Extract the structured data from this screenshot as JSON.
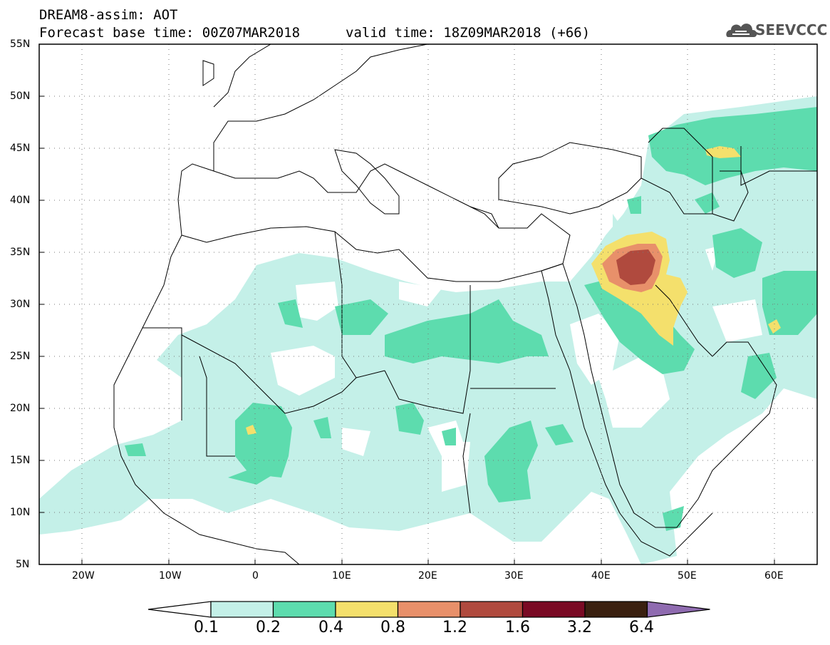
{
  "header": {
    "line1": "DREAM8-assim: AOT",
    "base_time": "Forecast base time: 00Z07MAR2018",
    "valid_time": "valid time: 18Z09MAR2018 (+66)"
  },
  "logo": {
    "text": "SEEVCCC",
    "icon": "cloud-icon"
  },
  "map": {
    "lat_labels": [
      "55N",
      "50N",
      "45N",
      "40N",
      "35N",
      "30N",
      "25N",
      "20N",
      "15N",
      "10N",
      "5N"
    ],
    "lon_labels": [
      "20W",
      "10W",
      "0",
      "10E",
      "20E",
      "30E",
      "40E",
      "50E",
      "60E"
    ],
    "lat_range": [
      5,
      55
    ],
    "lon_range": [
      -25,
      65
    ],
    "grid": "dotted"
  },
  "colorbar": {
    "levels": [
      "0.1",
      "0.2",
      "0.4",
      "0.8",
      "1.2",
      "1.6",
      "3.2",
      "6.4"
    ],
    "colors": [
      "#ffffff",
      "#c4f0e8",
      "#5ddcae",
      "#f4e06c",
      "#e8906a",
      "#b04a3e",
      "#7a0a24",
      "#3a2010",
      "#8f6bb0"
    ]
  }
}
